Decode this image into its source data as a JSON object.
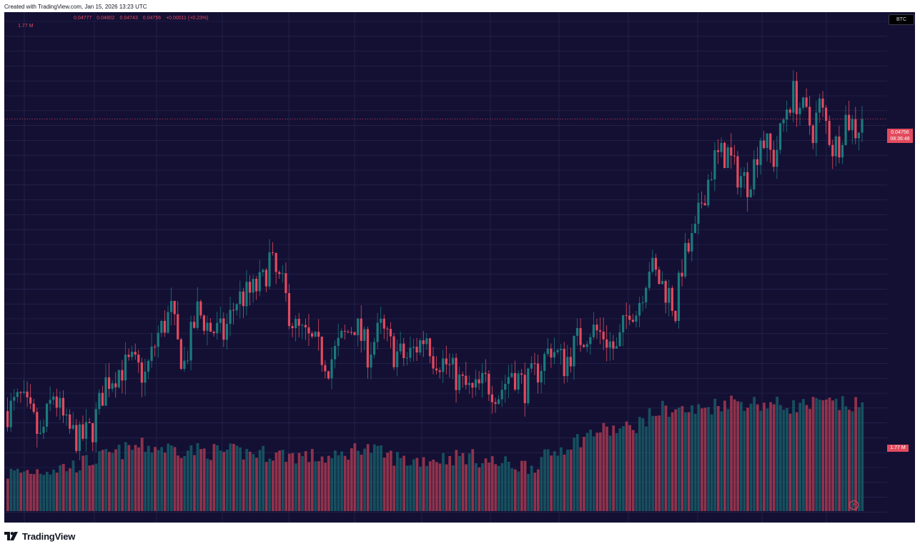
{
  "header": {
    "created_text": "Created with TradingView.com, Jan 15, 2026 13:23 UTC"
  },
  "legend": {
    "open": "0.04777",
    "high": "0.04802",
    "low": "0.04743",
    "close": "0.04756",
    "change": "+0.00011 (+0.23%)",
    "volume": "1.77 M"
  },
  "symbol_badge": "BTC",
  "price_tag": {
    "price": "0.04756",
    "countdown": "08:36:48"
  },
  "volume_tag": "1.77 M",
  "footer": {
    "brand": "TradingView"
  },
  "colors": {
    "up": "#1b7a7c",
    "down": "#e24a5e",
    "background": "#131034",
    "grid": "#2c2a55"
  },
  "icons": {
    "logo": "tradingview-logo-icon",
    "bolt": "lightning-icon"
  },
  "chart_data": {
    "type": "candlestick",
    "last_price": 0.04756,
    "close_path": [
      [
        0,
        0.0376
      ],
      [
        4,
        0.038
      ],
      [
        8,
        0.0372
      ],
      [
        10,
        0.0366
      ],
      [
        14,
        0.0382
      ],
      [
        18,
        0.037
      ],
      [
        22,
        0.0366
      ],
      [
        26,
        0.037
      ],
      [
        30,
        0.0386
      ],
      [
        34,
        0.039
      ],
      [
        38,
        0.0392
      ],
      [
        42,
        0.0388
      ],
      [
        46,
        0.0402
      ],
      [
        50,
        0.041
      ],
      [
        52,
        0.0398
      ],
      [
        54,
        0.0392
      ],
      [
        58,
        0.041
      ],
      [
        62,
        0.0404
      ],
      [
        66,
        0.0402
      ],
      [
        70,
        0.0414
      ],
      [
        74,
        0.0416
      ],
      [
        78,
        0.042
      ],
      [
        80,
        0.0428
      ],
      [
        82,
        0.0422
      ],
      [
        84,
        0.0418
      ],
      [
        86,
        0.041
      ],
      [
        88,
        0.0404
      ],
      [
        90,
        0.0402
      ],
      [
        94,
        0.0398
      ],
      [
        98,
        0.0392
      ],
      [
        102,
        0.04
      ],
      [
        106,
        0.0406
      ],
      [
        110,
        0.0396
      ],
      [
        114,
        0.0404
      ],
      [
        118,
        0.0396
      ],
      [
        122,
        0.0394
      ],
      [
        128,
        0.0402
      ],
      [
        130,
        0.0395
      ],
      [
        134,
        0.0392
      ],
      [
        138,
        0.0386
      ],
      [
        142,
        0.0382
      ],
      [
        146,
        0.0386
      ],
      [
        150,
        0.0382
      ],
      [
        154,
        0.039
      ],
      [
        158,
        0.0384
      ],
      [
        162,
        0.039
      ],
      [
        166,
        0.0398
      ],
      [
        170,
        0.0392
      ],
      [
        174,
        0.04
      ],
      [
        178,
        0.0404
      ],
      [
        182,
        0.0402
      ],
      [
        186,
        0.0396
      ],
      [
        188,
        0.0404
      ],
      [
        190,
        0.0412
      ],
      [
        192,
        0.041
      ],
      [
        196,
        0.0426
      ],
      [
        198,
        0.0422
      ],
      [
        202,
        0.0416
      ],
      [
        204,
        0.041
      ],
      [
        206,
        0.0426
      ],
      [
        210,
        0.0436
      ],
      [
        212,
        0.0448
      ],
      [
        216,
        0.0462
      ],
      [
        220,
        0.0464
      ],
      [
        222,
        0.0458
      ],
      [
        226,
        0.0454
      ],
      [
        228,
        0.046
      ],
      [
        230,
        0.047
      ],
      [
        232,
        0.0466
      ],
      [
        234,
        0.0462
      ],
      [
        236,
        0.047
      ],
      [
        238,
        0.048
      ],
      [
        240,
        0.0484
      ],
      [
        242,
        0.048
      ],
      [
        244,
        0.0476
      ],
      [
        246,
        0.0472
      ],
      [
        248,
        0.048
      ],
      [
        250,
        0.0474
      ],
      [
        252,
        0.0466
      ],
      [
        254,
        0.0468
      ],
      [
        256,
        0.0476
      ],
      [
        258,
        0.0474
      ],
      [
        259,
        0.0472
      ],
      [
        261,
        0.0475
      ]
    ],
    "volume_path": [
      [
        0,
        0.3
      ],
      [
        20,
        0.36
      ],
      [
        40,
        0.52
      ],
      [
        60,
        0.48
      ],
      [
        80,
        0.46
      ],
      [
        100,
        0.42
      ],
      [
        108,
        0.52
      ],
      [
        114,
        0.46
      ],
      [
        122,
        0.4
      ],
      [
        140,
        0.44
      ],
      [
        150,
        0.38
      ],
      [
        160,
        0.36
      ],
      [
        170,
        0.52
      ],
      [
        180,
        0.64
      ],
      [
        190,
        0.66
      ],
      [
        200,
        0.82
      ],
      [
        210,
        0.8
      ],
      [
        220,
        0.88
      ],
      [
        230,
        0.86
      ],
      [
        240,
        0.84
      ],
      [
        250,
        0.86
      ],
      [
        261,
        0.84
      ]
    ]
  }
}
